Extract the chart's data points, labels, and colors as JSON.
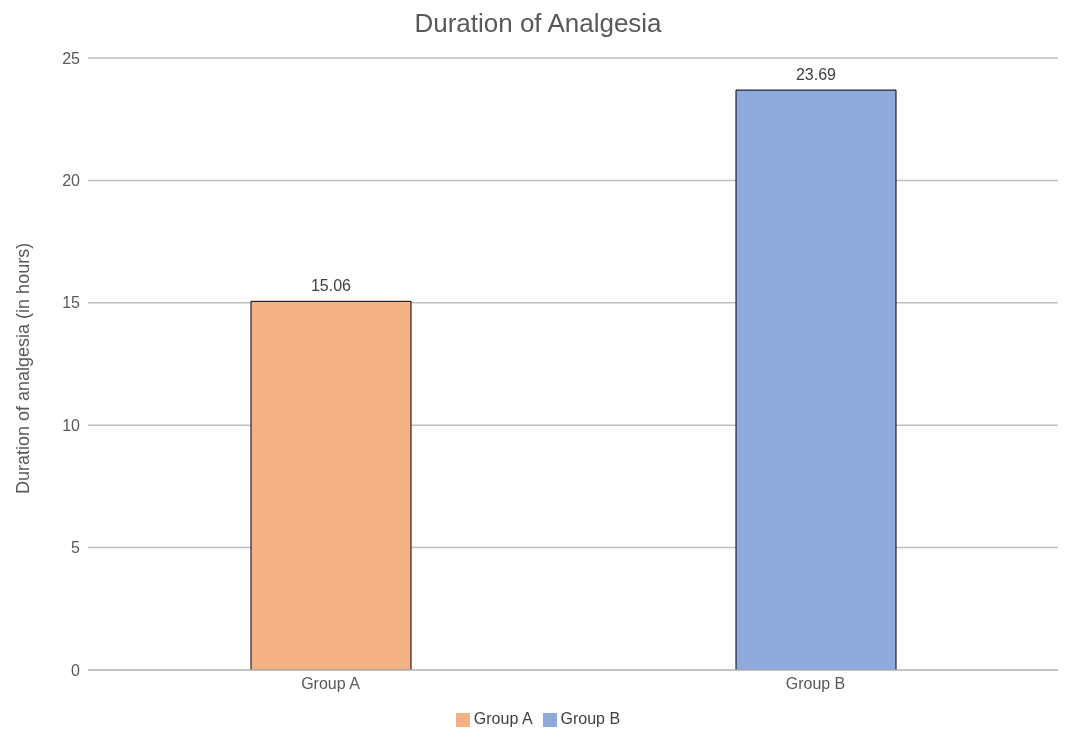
{
  "chart_data": {
    "type": "bar",
    "title": "Duration of Analgesia",
    "ylabel": "Duration of analgesia (in hours)",
    "categories": [
      "Group A",
      "Group B"
    ],
    "series": [
      {
        "name": "Group A",
        "color": "#f4b183",
        "values": [
          15.06,
          null
        ]
      },
      {
        "name": "Group B",
        "color": "#8faadc",
        "values": [
          null,
          23.69
        ]
      }
    ],
    "stacked": true,
    "ylim": [
      0,
      25
    ],
    "yticks": [
      0,
      5,
      10,
      15,
      20,
      25
    ],
    "grid": "y",
    "legend": "bottom",
    "data_labels": true
  }
}
